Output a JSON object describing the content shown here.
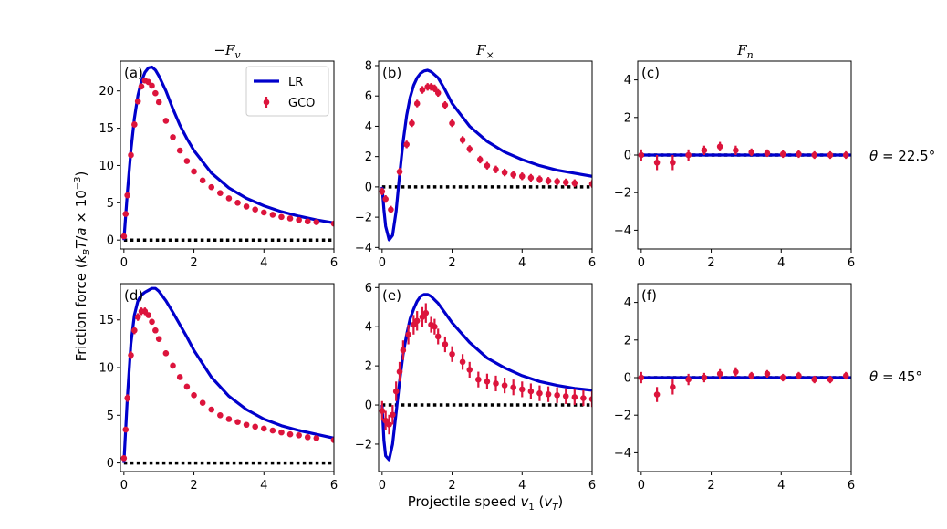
{
  "figure": {
    "ylabel": "Friction force (k_B T/a × 10⁻³)",
    "ylabel_parts": {
      "pre": "Friction force (",
      "k": "k",
      "B": "B",
      "T": "T",
      "slash_a": "/",
      "a": "a",
      "times": " × 10",
      "exp": "−3",
      "post": ")"
    },
    "xlabel": "Projectile speed v₁ (v_T)",
    "xlabel_parts": {
      "pre": "Projectile speed ",
      "v": "v",
      "sub1": "1",
      "paren_open": " (",
      "vT": "v",
      "subT": "T",
      "paren_close": ")"
    },
    "column_titles": [
      "−F_v",
      "F_×",
      "F_n"
    ],
    "column_title_parts": [
      {
        "main": "−F",
        "sub": "v"
      },
      {
        "main": "F",
        "sub": "×"
      },
      {
        "main": "F",
        "sub": "n"
      }
    ],
    "row_labels": [
      "θ = 22.5°",
      "θ = 45°"
    ],
    "row_label_parts": [
      {
        "theta": "θ",
        "rest": " = 22.5°"
      },
      {
        "theta": "θ",
        "rest": " = 45°"
      }
    ],
    "legend": [
      {
        "label": "LR",
        "color": "#0000cc",
        "style": "line"
      },
      {
        "label": "GCO",
        "color": "#dc143c",
        "style": "errorbar-marker"
      }
    ],
    "colors": {
      "lr": "#0000cc",
      "gco": "#dc143c",
      "zero": "#000000"
    }
  },
  "chart_data": [
    {
      "panel": "(a)",
      "type": "line",
      "row": 0,
      "col": 0,
      "xlim": [
        -0.1,
        6
      ],
      "ylim": [
        -1.2,
        24
      ],
      "xticks": [
        0,
        2,
        4,
        6
      ],
      "yticks": [
        0,
        5,
        10,
        15,
        20
      ],
      "lr": {
        "x": [
          0,
          0.1,
          0.2,
          0.3,
          0.4,
          0.5,
          0.6,
          0.7,
          0.8,
          0.9,
          1.0,
          1.2,
          1.4,
          1.6,
          1.8,
          2.0,
          2.5,
          3.0,
          3.5,
          4.0,
          4.5,
          5.0,
          5.5,
          6.0
        ],
        "y": [
          0,
          6.5,
          12.0,
          16.3,
          19.4,
          21.3,
          22.5,
          23.1,
          23.2,
          22.8,
          22.0,
          20.0,
          17.6,
          15.4,
          13.6,
          12.0,
          9.0,
          7.0,
          5.6,
          4.6,
          3.8,
          3.2,
          2.7,
          2.3
        ]
      },
      "gco": {
        "x": [
          0,
          0.05,
          0.1,
          0.2,
          0.3,
          0.4,
          0.5,
          0.6,
          0.7,
          0.8,
          0.9,
          1.0,
          1.2,
          1.4,
          1.6,
          1.8,
          2.0,
          2.25,
          2.5,
          2.75,
          3.0,
          3.25,
          3.5,
          3.75,
          4.0,
          4.25,
          4.5,
          4.75,
          5.0,
          5.25,
          5.5,
          6.0
        ],
        "y": [
          0.5,
          3.5,
          6.0,
          11.4,
          15.5,
          18.6,
          20.6,
          21.4,
          21.2,
          20.7,
          19.7,
          18.5,
          16.0,
          13.8,
          12.0,
          10.6,
          9.2,
          8.0,
          7.1,
          6.3,
          5.6,
          5.0,
          4.5,
          4.1,
          3.7,
          3.4,
          3.1,
          2.9,
          2.7,
          2.5,
          2.4,
          2.2
        ],
        "err": [
          0.3,
          0.3,
          0.4,
          0.4,
          0.4,
          0.4,
          0.4,
          0.4,
          0.4,
          0.3,
          0.3,
          0.3,
          0.3,
          0.3,
          0.3,
          0.3,
          0.3,
          0.2,
          0.2,
          0.2,
          0.2,
          0.2,
          0.2,
          0.2,
          0.2,
          0.2,
          0.2,
          0.2,
          0.2,
          0.2,
          0.2,
          0.2
        ]
      },
      "legend_here": true
    },
    {
      "panel": "(b)",
      "type": "line",
      "row": 0,
      "col": 1,
      "xlim": [
        -0.1,
        6
      ],
      "ylim": [
        -4.1,
        8.3
      ],
      "xticks": [
        0,
        2,
        4,
        6
      ],
      "yticks": [
        -4,
        -2,
        0,
        2,
        4,
        6,
        8
      ],
      "lr": {
        "x": [
          0,
          0.05,
          0.1,
          0.2,
          0.3,
          0.4,
          0.5,
          0.6,
          0.7,
          0.8,
          0.9,
          1.0,
          1.1,
          1.2,
          1.3,
          1.4,
          1.6,
          1.8,
          2.0,
          2.5,
          3.0,
          3.5,
          4.0,
          4.5,
          5.0,
          5.5,
          6.0
        ],
        "y": [
          0,
          -1.5,
          -2.6,
          -3.5,
          -3.2,
          -1.6,
          0.8,
          3.0,
          4.7,
          5.9,
          6.7,
          7.2,
          7.5,
          7.65,
          7.7,
          7.6,
          7.2,
          6.4,
          5.5,
          4.0,
          3.0,
          2.3,
          1.8,
          1.4,
          1.1,
          0.9,
          0.7
        ]
      },
      "gco": {
        "x": [
          0,
          0.1,
          0.25,
          0.5,
          0.7,
          0.85,
          1.0,
          1.15,
          1.3,
          1.4,
          1.5,
          1.6,
          1.8,
          2.0,
          2.3,
          2.5,
          2.8,
          3.0,
          3.25,
          3.5,
          3.75,
          4.0,
          4.25,
          4.5,
          4.75,
          5.0,
          5.25,
          5.5,
          6.0
        ],
        "y": [
          -0.3,
          -0.8,
          -1.5,
          1.0,
          2.8,
          4.2,
          5.5,
          6.4,
          6.6,
          6.6,
          6.5,
          6.2,
          5.4,
          4.2,
          3.1,
          2.5,
          1.8,
          1.4,
          1.15,
          0.95,
          0.8,
          0.7,
          0.6,
          0.5,
          0.4,
          0.35,
          0.3,
          0.25,
          0.2
        ]
      },
      "legend_here": false
    },
    {
      "panel": "(c)",
      "type": "line",
      "row": 0,
      "col": 2,
      "xlim": [
        -0.1,
        6
      ],
      "ylim": [
        -5,
        5
      ],
      "xticks": [
        0,
        2,
        4,
        6
      ],
      "yticks": [
        -4,
        -2,
        0,
        2,
        4
      ],
      "lr": {
        "x": [
          0,
          6
        ],
        "y": [
          0,
          0
        ]
      },
      "gco": {
        "x": [
          0,
          0.45,
          0.9,
          1.35,
          1.8,
          2.25,
          2.7,
          3.15,
          3.6,
          4.05,
          4.5,
          4.95,
          5.4,
          5.85
        ],
        "y": [
          0.0,
          -0.4,
          -0.4,
          0.0,
          0.25,
          0.45,
          0.25,
          0.15,
          0.1,
          0.05,
          0.05,
          0.0,
          0.0,
          0.0
        ],
        "err": [
          0.3,
          0.4,
          0.4,
          0.3,
          0.25,
          0.25,
          0.25,
          0.2,
          0.2,
          0.2,
          0.2,
          0.2,
          0.2,
          0.2
        ]
      },
      "legend_here": false
    },
    {
      "panel": "(d)",
      "type": "line",
      "row": 1,
      "col": 0,
      "xlim": [
        -0.1,
        6
      ],
      "ylim": [
        -0.9,
        18.8
      ],
      "xticks": [
        0,
        2,
        4,
        6
      ],
      "yticks": [
        0,
        5,
        10,
        15
      ],
      "lr": {
        "x": [
          0,
          0.1,
          0.2,
          0.3,
          0.4,
          0.5,
          0.6,
          0.7,
          0.8,
          0.9,
          1.0,
          1.2,
          1.4,
          1.6,
          1.8,
          2.0,
          2.5,
          3.0,
          3.5,
          4.0,
          4.5,
          5.0,
          5.5,
          6.0
        ],
        "y": [
          0,
          7.0,
          12.5,
          15.5,
          17.0,
          17.6,
          17.9,
          18.1,
          18.3,
          18.3,
          18.0,
          17.0,
          15.8,
          14.5,
          13.2,
          11.8,
          9.0,
          7.0,
          5.6,
          4.6,
          3.9,
          3.4,
          3.0,
          2.6
        ]
      },
      "gco": {
        "x": [
          0,
          0.05,
          0.1,
          0.2,
          0.3,
          0.4,
          0.5,
          0.6,
          0.7,
          0.8,
          0.9,
          1.0,
          1.2,
          1.4,
          1.6,
          1.8,
          2.0,
          2.25,
          2.5,
          2.75,
          3.0,
          3.25,
          3.5,
          3.75,
          4.0,
          4.25,
          4.5,
          4.75,
          5.0,
          5.25,
          5.5,
          6.0
        ],
        "y": [
          0.5,
          3.5,
          6.8,
          11.3,
          13.9,
          15.3,
          15.9,
          15.9,
          15.5,
          14.8,
          13.9,
          13.0,
          11.5,
          10.2,
          9.0,
          8.0,
          7.1,
          6.3,
          5.6,
          5.0,
          4.6,
          4.3,
          4.0,
          3.8,
          3.6,
          3.4,
          3.2,
          3.0,
          2.9,
          2.7,
          2.6,
          2.4
        ],
        "err": [
          0.3,
          0.3,
          0.4,
          0.4,
          0.4,
          0.4,
          0.4,
          0.4,
          0.3,
          0.3,
          0.3,
          0.3,
          0.3,
          0.3,
          0.3,
          0.3,
          0.3,
          0.2,
          0.2,
          0.2,
          0.2,
          0.2,
          0.2,
          0.2,
          0.2,
          0.2,
          0.2,
          0.2,
          0.2,
          0.2,
          0.2,
          0.2
        ]
      },
      "legend_here": false
    },
    {
      "panel": "(e)",
      "type": "line",
      "row": 1,
      "col": 1,
      "xlim": [
        -0.1,
        6
      ],
      "ylim": [
        -3.4,
        6.2
      ],
      "xticks": [
        0,
        2,
        4,
        6
      ],
      "yticks": [
        -2,
        0,
        2,
        4,
        6
      ],
      "lr": {
        "x": [
          0,
          0.05,
          0.1,
          0.2,
          0.3,
          0.4,
          0.5,
          0.6,
          0.7,
          0.8,
          0.9,
          1.0,
          1.1,
          1.2,
          1.3,
          1.4,
          1.6,
          1.8,
          2.0,
          2.5,
          3.0,
          3.5,
          4.0,
          4.5,
          5.0,
          5.5,
          6.0
        ],
        "y": [
          0,
          -1.8,
          -2.6,
          -2.8,
          -2.0,
          -0.4,
          1.2,
          2.6,
          3.6,
          4.4,
          4.9,
          5.3,
          5.55,
          5.65,
          5.65,
          5.55,
          5.2,
          4.7,
          4.2,
          3.2,
          2.4,
          1.9,
          1.5,
          1.2,
          1.0,
          0.85,
          0.75
        ]
      },
      "gco": {
        "x": [
          0,
          0.1,
          0.2,
          0.3,
          0.4,
          0.5,
          0.6,
          0.75,
          0.9,
          1.0,
          1.15,
          1.25,
          1.4,
          1.5,
          1.6,
          1.8,
          2.0,
          2.3,
          2.5,
          2.75,
          3.0,
          3.25,
          3.5,
          3.75,
          4.0,
          4.25,
          4.5,
          4.75,
          5.0,
          5.25,
          5.5,
          5.75,
          6.0
        ],
        "y": [
          -0.3,
          -0.8,
          -1.0,
          -0.5,
          0.7,
          1.7,
          2.8,
          3.6,
          4.1,
          4.3,
          4.5,
          4.7,
          4.1,
          4.0,
          3.5,
          3.1,
          2.6,
          2.2,
          1.8,
          1.3,
          1.2,
          1.1,
          1.0,
          0.9,
          0.8,
          0.7,
          0.6,
          0.55,
          0.5,
          0.45,
          0.4,
          0.35,
          0.3
        ],
        "err": [
          0.5,
          0.5,
          0.5,
          0.5,
          0.5,
          0.5,
          0.5,
          0.5,
          0.5,
          0.5,
          0.5,
          0.5,
          0.4,
          0.4,
          0.4,
          0.4,
          0.4,
          0.4,
          0.4,
          0.4,
          0.4,
          0.4,
          0.4,
          0.4,
          0.4,
          0.4,
          0.4,
          0.4,
          0.4,
          0.4,
          0.4,
          0.4,
          0.4
        ]
      },
      "legend_here": false
    },
    {
      "panel": "(f)",
      "type": "line",
      "row": 1,
      "col": 2,
      "xlim": [
        -0.1,
        6
      ],
      "ylim": [
        -5,
        5
      ],
      "xticks": [
        0,
        2,
        4,
        6
      ],
      "yticks": [
        -4,
        -2,
        0,
        2,
        4
      ],
      "lr": {
        "x": [
          0,
          6
        ],
        "y": [
          0,
          0
        ]
      },
      "gco": {
        "x": [
          0,
          0.45,
          0.9,
          1.35,
          1.8,
          2.25,
          2.7,
          3.15,
          3.6,
          4.05,
          4.5,
          4.95,
          5.4,
          5.85
        ],
        "y": [
          0.0,
          -0.9,
          -0.5,
          -0.1,
          0.0,
          0.2,
          0.3,
          0.1,
          0.2,
          0.0,
          0.1,
          -0.1,
          -0.1,
          0.1
        ],
        "err": [
          0.3,
          0.4,
          0.4,
          0.3,
          0.25,
          0.25,
          0.25,
          0.2,
          0.2,
          0.2,
          0.2,
          0.2,
          0.2,
          0.2
        ]
      },
      "legend_here": false
    }
  ]
}
